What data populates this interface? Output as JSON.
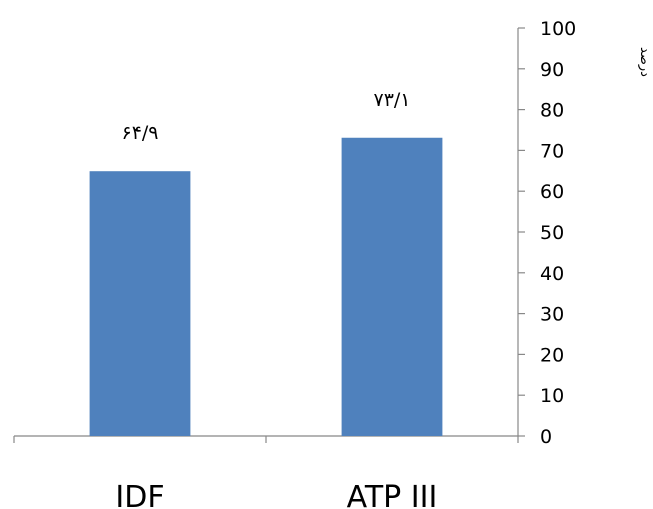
{
  "chart_data": {
    "type": "bar",
    "categories": [
      "IDF",
      "ATP III"
    ],
    "values": [
      64.9,
      73.1
    ],
    "data_labels": [
      "۶۴/۹",
      "۷۳/۱"
    ],
    "ylabel": "درصد",
    "ylim": [
      0,
      100
    ],
    "yticks": [
      0,
      10,
      20,
      30,
      40,
      50,
      60,
      70,
      80,
      90,
      100
    ],
    "y_axis_side": "right",
    "grid": false,
    "legend": "none",
    "bar_color": "#4f81bd"
  }
}
